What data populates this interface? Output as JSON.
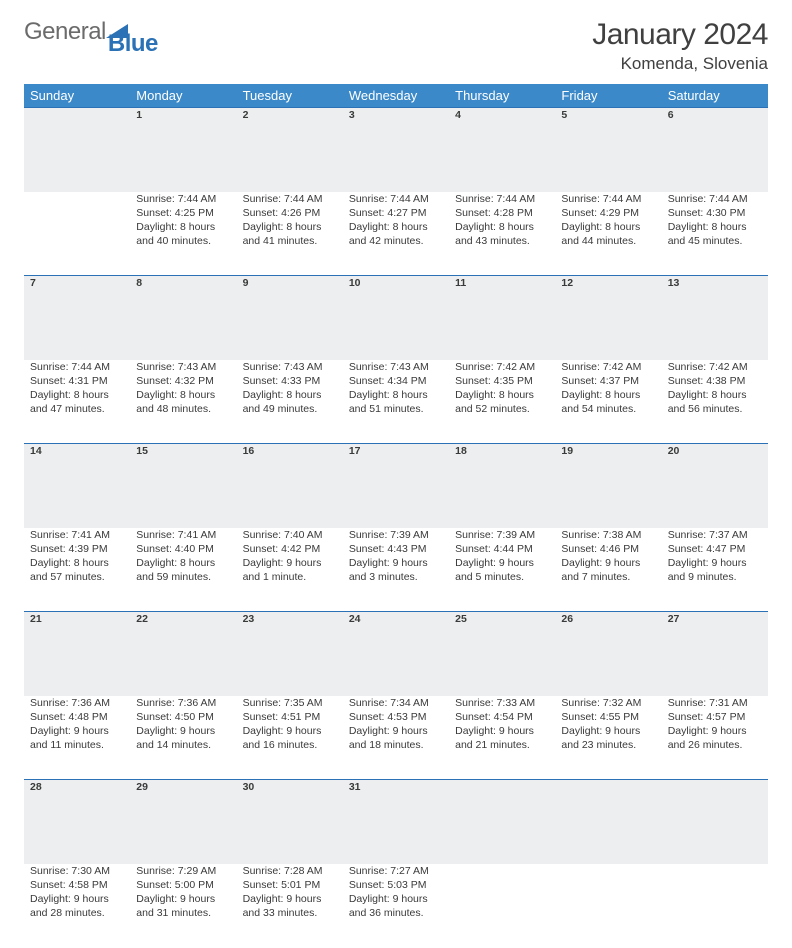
{
  "brand": {
    "part1": "General",
    "part2": "Blue",
    "accent_color": "#2a72b5"
  },
  "title": "January 2024",
  "location": "Komenda, Slovenia",
  "header_bg": "#3b89c9",
  "daynum_bg": "#eceeef",
  "rule_color": "#2a72b5",
  "day_headers": [
    "Sunday",
    "Monday",
    "Tuesday",
    "Wednesday",
    "Thursday",
    "Friday",
    "Saturday"
  ],
  "weeks": [
    [
      null,
      {
        "n": "1",
        "sr": "7:44 AM",
        "ss": "4:25 PM",
        "dl": "8 hours and 40 minutes."
      },
      {
        "n": "2",
        "sr": "7:44 AM",
        "ss": "4:26 PM",
        "dl": "8 hours and 41 minutes."
      },
      {
        "n": "3",
        "sr": "7:44 AM",
        "ss": "4:27 PM",
        "dl": "8 hours and 42 minutes."
      },
      {
        "n": "4",
        "sr": "7:44 AM",
        "ss": "4:28 PM",
        "dl": "8 hours and 43 minutes."
      },
      {
        "n": "5",
        "sr": "7:44 AM",
        "ss": "4:29 PM",
        "dl": "8 hours and 44 minutes."
      },
      {
        "n": "6",
        "sr": "7:44 AM",
        "ss": "4:30 PM",
        "dl": "8 hours and 45 minutes."
      }
    ],
    [
      {
        "n": "7",
        "sr": "7:44 AM",
        "ss": "4:31 PM",
        "dl": "8 hours and 47 minutes."
      },
      {
        "n": "8",
        "sr": "7:43 AM",
        "ss": "4:32 PM",
        "dl": "8 hours and 48 minutes."
      },
      {
        "n": "9",
        "sr": "7:43 AM",
        "ss": "4:33 PM",
        "dl": "8 hours and 49 minutes."
      },
      {
        "n": "10",
        "sr": "7:43 AM",
        "ss": "4:34 PM",
        "dl": "8 hours and 51 minutes."
      },
      {
        "n": "11",
        "sr": "7:42 AM",
        "ss": "4:35 PM",
        "dl": "8 hours and 52 minutes."
      },
      {
        "n": "12",
        "sr": "7:42 AM",
        "ss": "4:37 PM",
        "dl": "8 hours and 54 minutes."
      },
      {
        "n": "13",
        "sr": "7:42 AM",
        "ss": "4:38 PM",
        "dl": "8 hours and 56 minutes."
      }
    ],
    [
      {
        "n": "14",
        "sr": "7:41 AM",
        "ss": "4:39 PM",
        "dl": "8 hours and 57 minutes."
      },
      {
        "n": "15",
        "sr": "7:41 AM",
        "ss": "4:40 PM",
        "dl": "8 hours and 59 minutes."
      },
      {
        "n": "16",
        "sr": "7:40 AM",
        "ss": "4:42 PM",
        "dl": "9 hours and 1 minute."
      },
      {
        "n": "17",
        "sr": "7:39 AM",
        "ss": "4:43 PM",
        "dl": "9 hours and 3 minutes."
      },
      {
        "n": "18",
        "sr": "7:39 AM",
        "ss": "4:44 PM",
        "dl": "9 hours and 5 minutes."
      },
      {
        "n": "19",
        "sr": "7:38 AM",
        "ss": "4:46 PM",
        "dl": "9 hours and 7 minutes."
      },
      {
        "n": "20",
        "sr": "7:37 AM",
        "ss": "4:47 PM",
        "dl": "9 hours and 9 minutes."
      }
    ],
    [
      {
        "n": "21",
        "sr": "7:36 AM",
        "ss": "4:48 PM",
        "dl": "9 hours and 11 minutes."
      },
      {
        "n": "22",
        "sr": "7:36 AM",
        "ss": "4:50 PM",
        "dl": "9 hours and 14 minutes."
      },
      {
        "n": "23",
        "sr": "7:35 AM",
        "ss": "4:51 PM",
        "dl": "9 hours and 16 minutes."
      },
      {
        "n": "24",
        "sr": "7:34 AM",
        "ss": "4:53 PM",
        "dl": "9 hours and 18 minutes."
      },
      {
        "n": "25",
        "sr": "7:33 AM",
        "ss": "4:54 PM",
        "dl": "9 hours and 21 minutes."
      },
      {
        "n": "26",
        "sr": "7:32 AM",
        "ss": "4:55 PM",
        "dl": "9 hours and 23 minutes."
      },
      {
        "n": "27",
        "sr": "7:31 AM",
        "ss": "4:57 PM",
        "dl": "9 hours and 26 minutes."
      }
    ],
    [
      {
        "n": "28",
        "sr": "7:30 AM",
        "ss": "4:58 PM",
        "dl": "9 hours and 28 minutes."
      },
      {
        "n": "29",
        "sr": "7:29 AM",
        "ss": "5:00 PM",
        "dl": "9 hours and 31 minutes."
      },
      {
        "n": "30",
        "sr": "7:28 AM",
        "ss": "5:01 PM",
        "dl": "9 hours and 33 minutes."
      },
      {
        "n": "31",
        "sr": "7:27 AM",
        "ss": "5:03 PM",
        "dl": "9 hours and 36 minutes."
      },
      null,
      null,
      null
    ]
  ],
  "labels": {
    "sunrise": "Sunrise:",
    "sunset": "Sunset:",
    "daylight": "Daylight:"
  }
}
